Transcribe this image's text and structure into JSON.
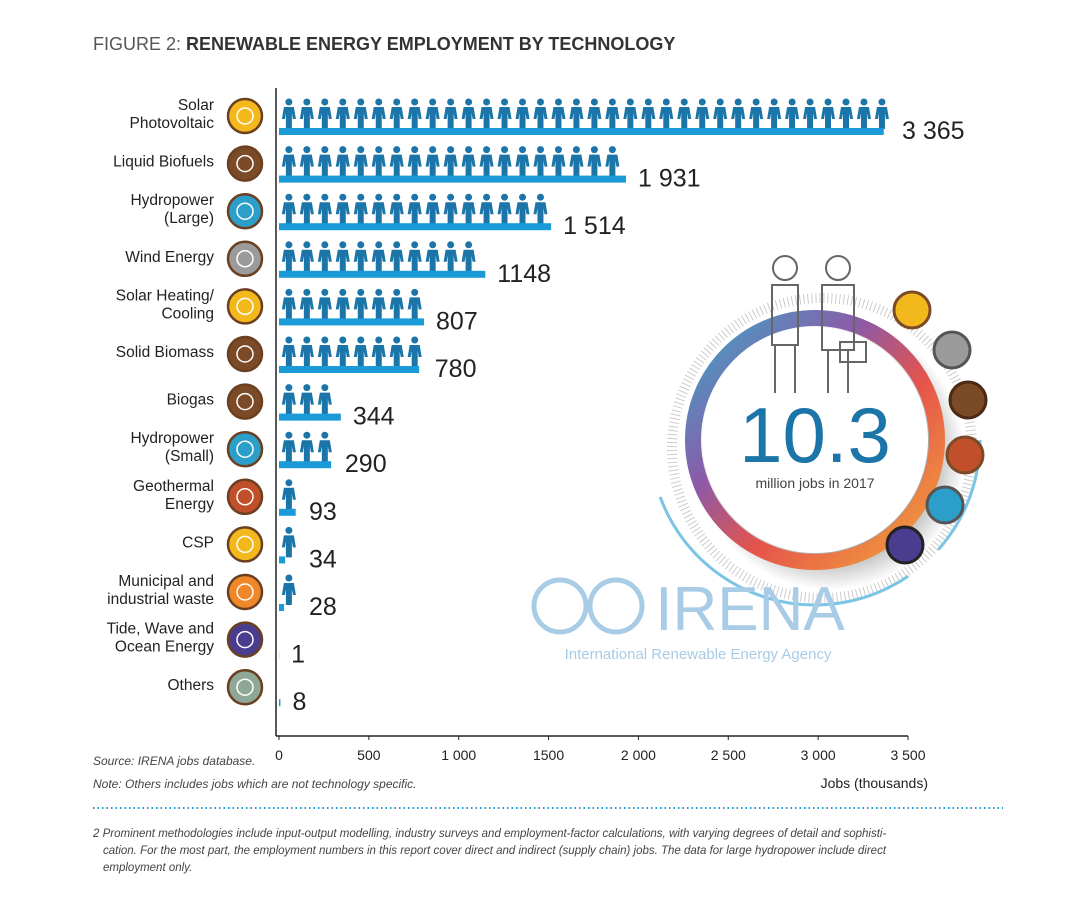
{
  "chart_data": {
    "type": "bar",
    "figure_label": "FIGURE 2:",
    "title": "RENEWABLE ENERGY EMPLOYMENT BY TECHNOLOGY",
    "categories": [
      "Solar\nPhotovoltaic",
      "Liquid Biofuels",
      "Hydropower\n(Large)",
      "Wind Energy",
      "Solar Heating/\nCooling",
      "Solid Biomass",
      "Biogas",
      "Hydropower\n(Small)",
      "Geothermal\nEnergy",
      "CSP",
      "Municipal and\nindustrial waste",
      "Tide, Wave and\nOcean Energy",
      "Others"
    ],
    "values": [
      3365,
      1931,
      1514,
      1148,
      807,
      780,
      344,
      290,
      93,
      34,
      28,
      1,
      8
    ],
    "value_labels": [
      "3 365",
      "1 931",
      "1 514",
      "1148",
      "807",
      "780",
      "344",
      "290",
      "93",
      "34",
      "28",
      "1",
      "8"
    ],
    "color": "#1a9ad6",
    "figure_color": "#1b75a8",
    "icon_colors": [
      "#f2b81c",
      "#7b4a27",
      "#2b9fc9",
      "#9b9b9b",
      "#f2b81c",
      "#7b4a27",
      "#7b4a27",
      "#2b9fc9",
      "#c1502a",
      "#f2b81c",
      "#f0882a",
      "#4a3d8f",
      "#8fa797"
    ],
    "xlim": [
      0,
      3500
    ],
    "xticks": [
      0,
      500,
      {
        "value": 1000,
        "label": "1 000"
      },
      1500,
      {
        "value": 2000,
        "label": "2 000"
      },
      {
        "value": 2500,
        "label": "2 500"
      },
      {
        "value": 3000,
        "label": "3 000"
      },
      {
        "value": 3500,
        "label": "3 500"
      }
    ],
    "xlabel": "Jobs (thousands)",
    "source": "Source: IRENA jobs database.",
    "note": "Note: Others includes jobs which are not technology specific.",
    "center_value": "10.3",
    "center_label": "million jobs in 2017",
    "logo_name": "IRENA",
    "logo_tagline": "International Renewable Energy Agency",
    "footnote": [
      "2 Prominent methodologies include input-output modelling, industry surveys and employment-factor calculations, with varying degrees of detail and sophisti-",
      "cation. For the most part, the employment numbers in this report cover direct and indirect (supply chain) jobs. The data for large hydropower include direct",
      "employment only."
    ]
  }
}
